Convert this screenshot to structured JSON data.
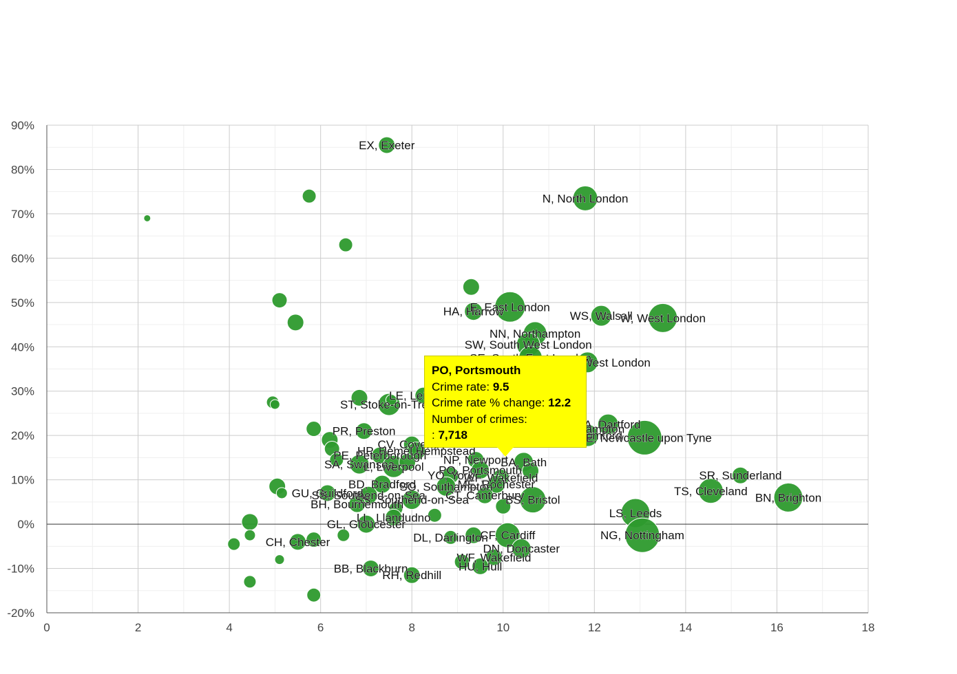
{
  "chart_data": {
    "type": "scatter",
    "variant": "bubble",
    "title": "",
    "xlabel": "",
    "ylabel": "",
    "xlim": [
      0,
      18
    ],
    "ylim": [
      -20,
      90
    ],
    "x_ticks": [
      0,
      2,
      4,
      6,
      8,
      10,
      12,
      14,
      16,
      18
    ],
    "y_ticks": [
      -20,
      -10,
      0,
      10,
      20,
      30,
      40,
      50,
      60,
      70,
      80,
      90
    ],
    "y_tick_labels": [
      "-20%",
      "-10%",
      "0%",
      "10%",
      "20%",
      "30%",
      "40%",
      "50%",
      "60%",
      "70%",
      "80%",
      "90%"
    ],
    "x_tick_labels": [
      "0",
      "2",
      "4",
      "6",
      "8",
      "10",
      "12",
      "14",
      "16",
      "18"
    ],
    "grid": true,
    "bubble_color": "#2d9a2d",
    "points": [
      {
        "x": 7.45,
        "y": 85.5,
        "r": 12,
        "label": "EX, Exeter"
      },
      {
        "x": 11.8,
        "y": 73.5,
        "r": 18,
        "label": "N, North London"
      },
      {
        "x": 5.75,
        "y": 74,
        "r": 10,
        "label": ""
      },
      {
        "x": 2.2,
        "y": 69,
        "r": 5,
        "label": ""
      },
      {
        "x": 6.55,
        "y": 63,
        "r": 10,
        "label": ""
      },
      {
        "x": 9.3,
        "y": 53.5,
        "r": 12,
        "label": ""
      },
      {
        "x": 5.1,
        "y": 50.5,
        "r": 11,
        "label": ""
      },
      {
        "x": 5.45,
        "y": 45.5,
        "r": 12,
        "label": ""
      },
      {
        "x": 9.35,
        "y": 48,
        "r": 13,
        "label": "HA, Harrow"
      },
      {
        "x": 10.15,
        "y": 49,
        "r": 22,
        "label": "E, East London"
      },
      {
        "x": 12.15,
        "y": 47,
        "r": 15,
        "label": "WS, Walsall"
      },
      {
        "x": 13.5,
        "y": 46.5,
        "r": 21,
        "label": "W, West London"
      },
      {
        "x": 10.7,
        "y": 43,
        "r": 17,
        "label": "NN, Northampton"
      },
      {
        "x": 10.55,
        "y": 40.5,
        "r": 17,
        "label": "SW, South West London"
      },
      {
        "x": 10.6,
        "y": 37.5,
        "r": 17,
        "label": "SE, South East London"
      },
      {
        "x": 11.85,
        "y": 36.5,
        "r": 15,
        "label": "NW, North West London"
      },
      {
        "x": 6.85,
        "y": 28.5,
        "r": 12,
        "label": ""
      },
      {
        "x": 7.5,
        "y": 27,
        "r": 16,
        "label": "ST, Stoke-on-Trent"
      },
      {
        "x": 7.55,
        "y": 28,
        "r": 8,
        "label": ""
      },
      {
        "x": 4.95,
        "y": 27.5,
        "r": 9,
        "label": ""
      },
      {
        "x": 5.0,
        "y": 27,
        "r": 7,
        "label": ""
      },
      {
        "x": 8.25,
        "y": 29,
        "r": 12,
        "label": "LE, Leicester"
      },
      {
        "x": 12.3,
        "y": 22.5,
        "r": 15,
        "label": "DA, Dartford"
      },
      {
        "x": 11.85,
        "y": 20,
        "r": 16,
        "label": "RM, Romford"
      },
      {
        "x": 11.5,
        "y": 21.5,
        "r": 14,
        "label": "WV, Wolverhampton"
      },
      {
        "x": 13.1,
        "y": 19.5,
        "r": 25,
        "label": "NE, Newcastle upon Tyne"
      },
      {
        "x": 5.85,
        "y": 21.5,
        "r": 11,
        "label": ""
      },
      {
        "x": 6.95,
        "y": 21,
        "r": 12,
        "label": "PR, Preston"
      },
      {
        "x": 6.2,
        "y": 19,
        "r": 12,
        "label": ""
      },
      {
        "x": 6.25,
        "y": 17,
        "r": 11,
        "label": ""
      },
      {
        "x": 8.0,
        "y": 18,
        "r": 12,
        "label": "CV, Coventry"
      },
      {
        "x": 8.1,
        "y": 16.5,
        "r": 13,
        "label": "HP, Hemel Hempstead"
      },
      {
        "x": 7.3,
        "y": 15.5,
        "r": 12,
        "label": "PE, Peterborough"
      },
      {
        "x": 6.35,
        "y": 14.5,
        "r": 10,
        "label": ""
      },
      {
        "x": 6.85,
        "y": 13.5,
        "r": 14,
        "label": "SA, Swansea"
      },
      {
        "x": 7.6,
        "y": 13,
        "r": 16,
        "label": "L, Liverpool"
      },
      {
        "x": 7.9,
        "y": 14,
        "r": 12,
        "label": ""
      },
      {
        "x": 10.45,
        "y": 14,
        "r": 14,
        "label": "BA, Bath"
      },
      {
        "x": 9.4,
        "y": 14.5,
        "r": 12,
        "label": "NP, Newport"
      },
      {
        "x": 9.5,
        "y": 12.2,
        "r": 13,
        "label": "PO, Portsmouth"
      },
      {
        "x": 10.6,
        "y": 12,
        "r": 12,
        "label": ""
      },
      {
        "x": 15.2,
        "y": 11,
        "r": 12,
        "label": "SR, Sunderland"
      },
      {
        "x": 8.85,
        "y": 11,
        "r": 12,
        "label": "YO, York"
      },
      {
        "x": 9.95,
        "y": 10.5,
        "r": 12,
        "label": "WF, Wakefield"
      },
      {
        "x": 9.85,
        "y": 9,
        "r": 13,
        "label": "ME, Rochester"
      },
      {
        "x": 8.75,
        "y": 8.5,
        "r": 14,
        "label": "SO, Southampton"
      },
      {
        "x": 7.35,
        "y": 9,
        "r": 13,
        "label": "BD, Bradford"
      },
      {
        "x": 5.05,
        "y": 8.5,
        "r": 12,
        "label": ""
      },
      {
        "x": 5.15,
        "y": 7,
        "r": 8,
        "label": ""
      },
      {
        "x": 6.15,
        "y": 7,
        "r": 12,
        "label": "GU, Guildford"
      },
      {
        "x": 14.55,
        "y": 7.5,
        "r": 18,
        "label": "TS, Cleveland"
      },
      {
        "x": 16.25,
        "y": 6,
        "r": 21,
        "label": "BN, Brighton"
      },
      {
        "x": 9.6,
        "y": 6.5,
        "r": 12,
        "label": "CT, Canterbury"
      },
      {
        "x": 7.05,
        "y": 6.5,
        "r": 13,
        "label": "SS, Southend-on-Sea"
      },
      {
        "x": 8.0,
        "y": 5.5,
        "r": 14,
        "label": "SS, Southend-on-Sea"
      },
      {
        "x": 10.65,
        "y": 5.5,
        "r": 19,
        "label": "BS, Bristol"
      },
      {
        "x": 6.8,
        "y": 4.5,
        "r": 12,
        "label": "BH, Bournemouth"
      },
      {
        "x": 10.0,
        "y": 4,
        "r": 11,
        "label": ""
      },
      {
        "x": 7.65,
        "y": 3.5,
        "r": 10,
        "label": ""
      },
      {
        "x": 8.5,
        "y": 2,
        "r": 10,
        "label": ""
      },
      {
        "x": 12.9,
        "y": 2.5,
        "r": 21,
        "label": "LS, Leeds"
      },
      {
        "x": 7.6,
        "y": 1.5,
        "r": 12,
        "label": "LL, Llandudno"
      },
      {
        "x": 7.0,
        "y": 0,
        "r": 13,
        "label": "GL, Gloucester"
      },
      {
        "x": 4.45,
        "y": 0.5,
        "r": 12,
        "label": ""
      },
      {
        "x": 4.45,
        "y": -2.5,
        "r": 8,
        "label": ""
      },
      {
        "x": 6.5,
        "y": -2.5,
        "r": 9,
        "label": ""
      },
      {
        "x": 8.85,
        "y": -3,
        "r": 10,
        "label": "DL, Darlington"
      },
      {
        "x": 9.35,
        "y": -2.5,
        "r": 12,
        "label": ""
      },
      {
        "x": 10.1,
        "y": -2.5,
        "r": 18,
        "label": "CF, Cardiff"
      },
      {
        "x": 13.05,
        "y": -2.5,
        "r": 25,
        "label": "NG, Nottingham"
      },
      {
        "x": 10.4,
        "y": -5.5,
        "r": 14,
        "label": "DN, Doncaster"
      },
      {
        "x": 4.1,
        "y": -4.5,
        "r": 9,
        "label": ""
      },
      {
        "x": 5.5,
        "y": -4,
        "r": 12,
        "label": "CH, Chester"
      },
      {
        "x": 5.85,
        "y": -3.5,
        "r": 11,
        "label": ""
      },
      {
        "x": 9.8,
        "y": -7.5,
        "r": 12,
        "label": "WF, Wakefield"
      },
      {
        "x": 5.1,
        "y": -8,
        "r": 7,
        "label": ""
      },
      {
        "x": 9.1,
        "y": -8.5,
        "r": 11,
        "label": ""
      },
      {
        "x": 9.5,
        "y": -9.5,
        "r": 12,
        "label": "HU, Hull"
      },
      {
        "x": 7.1,
        "y": -10,
        "r": 12,
        "label": "BB, Blackburn"
      },
      {
        "x": 8.0,
        "y": -11.5,
        "r": 12,
        "label": "RH, Redhill"
      },
      {
        "x": 4.45,
        "y": -13,
        "r": 9,
        "label": ""
      },
      {
        "x": 5.85,
        "y": -16,
        "r": 10,
        "label": ""
      }
    ]
  },
  "tooltip": {
    "title": "PO, Portsmouth",
    "crime_rate_label": "Crime rate:",
    "crime_rate_value": "9.5",
    "pct_change_label": "Crime rate % change:",
    "pct_change_value": "12.2",
    "number_label": "Number of crimes:",
    "number_prefix": ":",
    "number_value": "7,718"
  }
}
